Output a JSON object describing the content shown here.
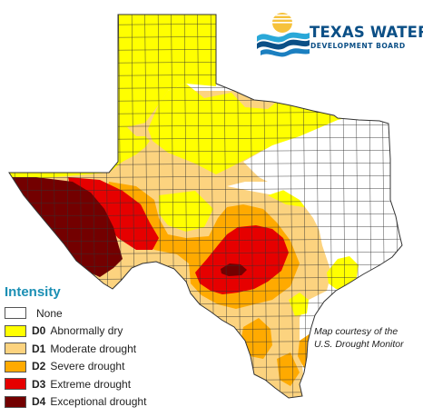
{
  "logo": {
    "title": "TEXAS WATER",
    "subtitle": "DEVELOPMENT BOARD",
    "colors": {
      "text": "#0b4f86",
      "wave_dark": "#0b4f86",
      "wave_light": "#2aa8d8",
      "sun": "#f6c23c"
    }
  },
  "legend": {
    "title": "Intensity",
    "items": [
      {
        "code": "",
        "label": "None",
        "color": "#ffffff"
      },
      {
        "code": "D0",
        "label": "Abnormally dry",
        "color": "#ffff00"
      },
      {
        "code": "D1",
        "label": "Moderate drought",
        "color": "#fcd37f"
      },
      {
        "code": "D2",
        "label": "Severe drought",
        "color": "#ffaa00"
      },
      {
        "code": "D3",
        "label": "Extreme drought",
        "color": "#e60000"
      },
      {
        "code": "D4",
        "label": "Exceptional drought",
        "color": "#730000"
      }
    ]
  },
  "credit": {
    "line1": "Map courtesy of the",
    "line2": "U.S. Drought Monitor"
  },
  "map": {
    "region": "Texas",
    "county_line_color": "#333333"
  }
}
